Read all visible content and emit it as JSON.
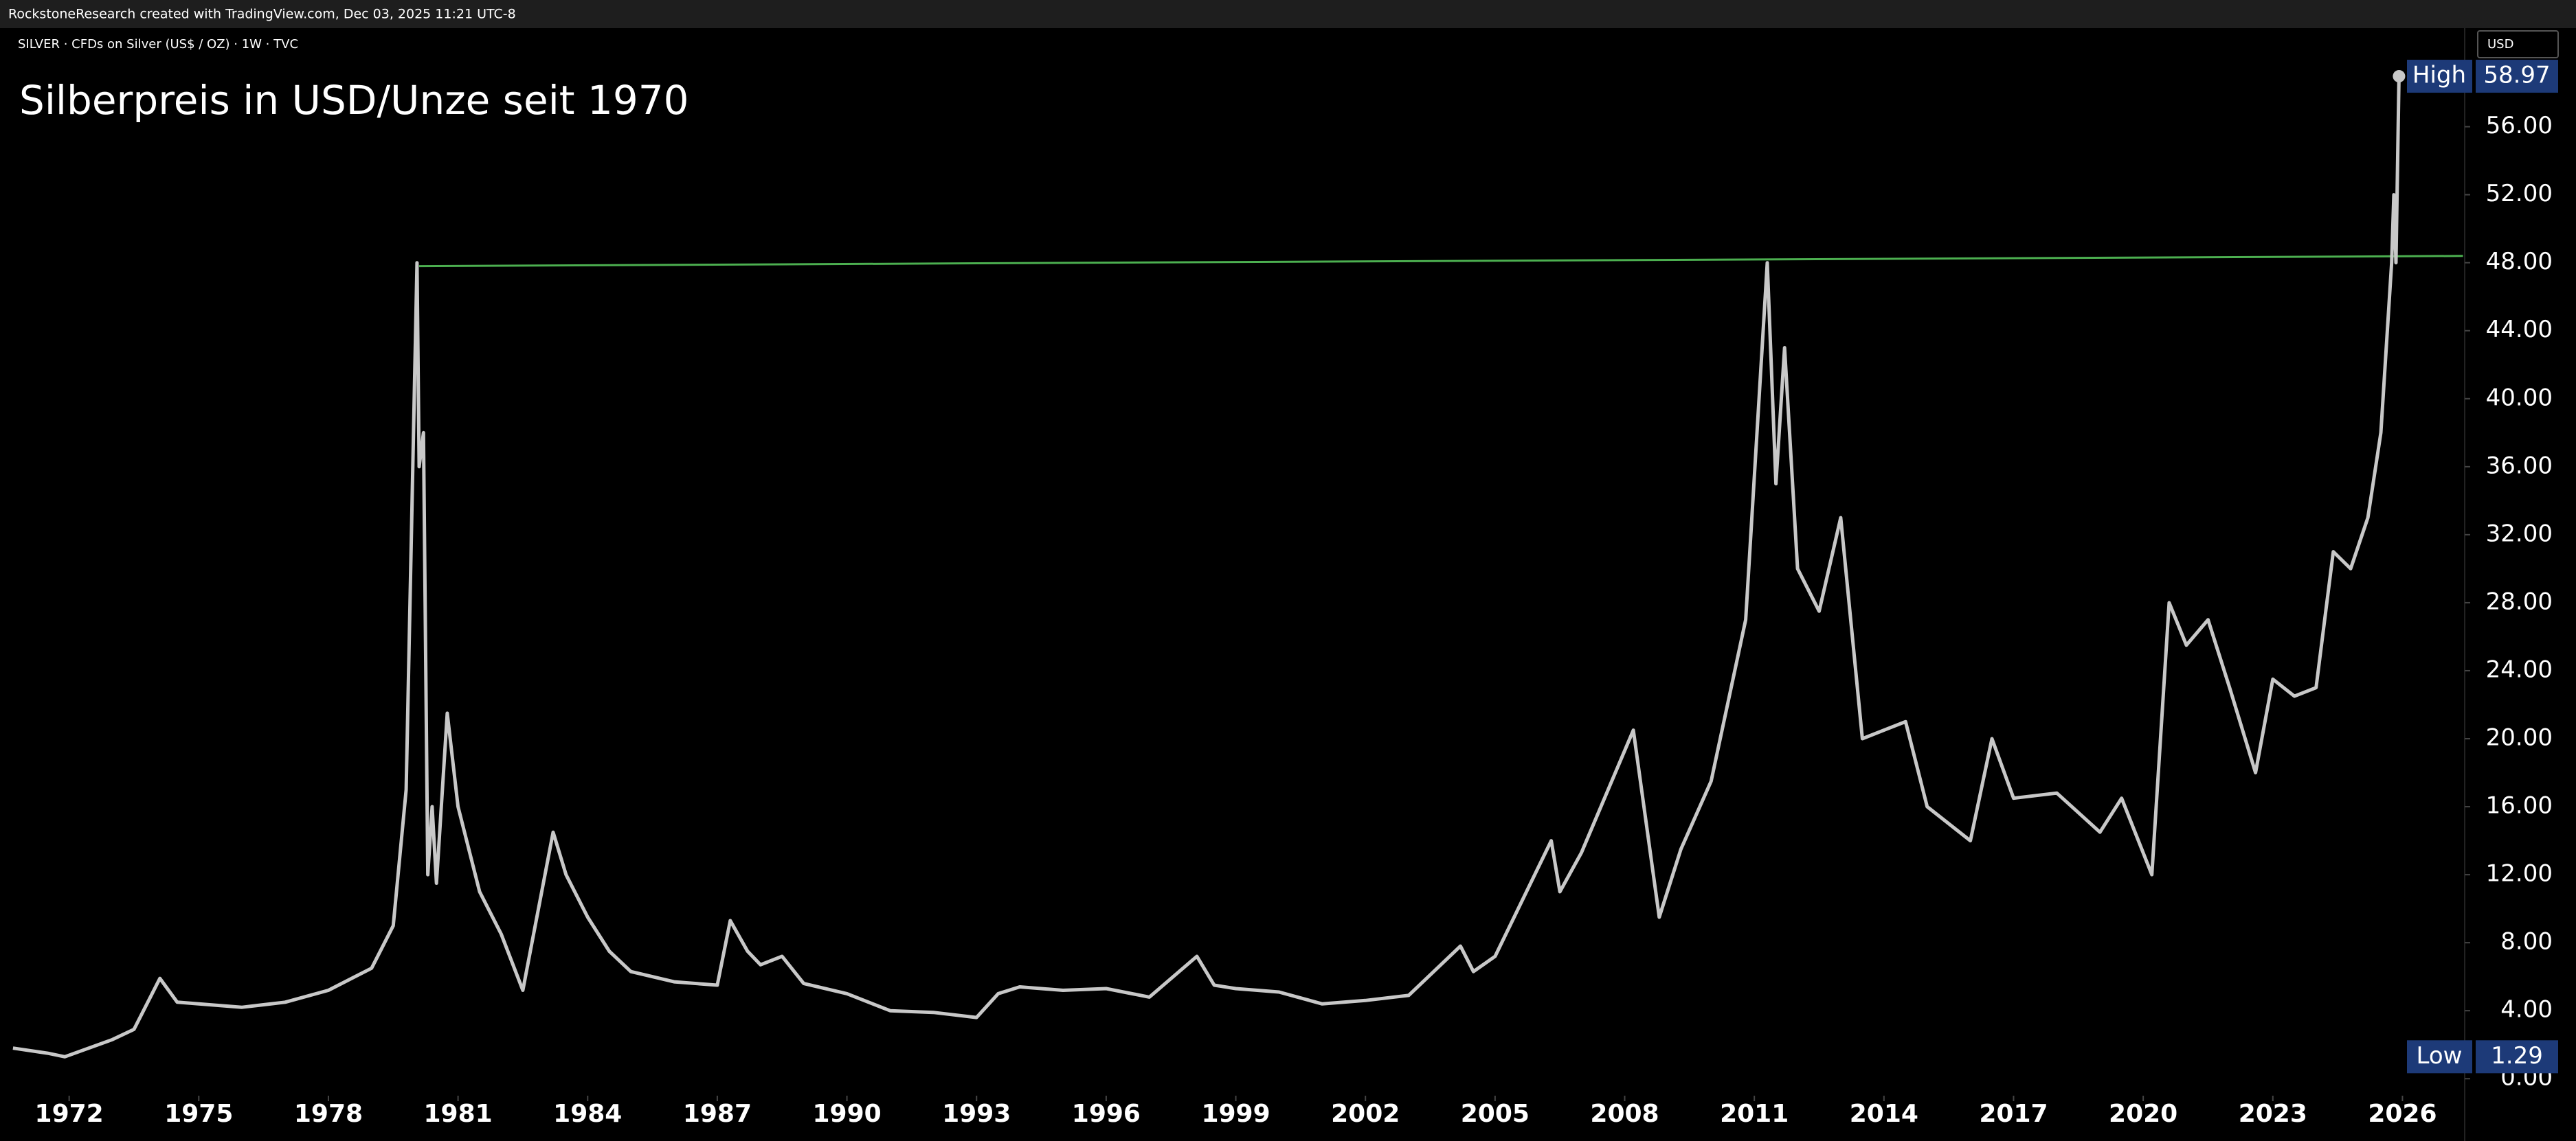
{
  "chart_data": {
    "type": "line",
    "credit": "RockstoneResearch created with TradingView.com, Dec 03, 2025 11:21 UTC-8",
    "subtitle": "SILVER · CFDs on Silver (US$ / OZ) · 1W · TVC",
    "title": "Silberpreis in USD/Unze seit 1970",
    "currency": "USD",
    "color": "#c8c8c8",
    "grid": false,
    "x": [
      1970.7,
      1971.5,
      1971.9,
      1973,
      1973.5,
      1974.1,
      1974.5,
      1975,
      1976,
      1977,
      1978,
      1979,
      1979.5,
      1979.8,
      1980.05,
      1980.1,
      1980.2,
      1980.3,
      1980.4,
      1980.5,
      1980.75,
      1981,
      1981.5,
      1982,
      1982.5,
      1983.2,
      1983.5,
      1984,
      1984.5,
      1985,
      1986,
      1987,
      1987.3,
      1987.7,
      1988,
      1988.5,
      1989,
      1990,
      1991,
      1992,
      1993,
      1993.5,
      1994,
      1995,
      1996,
      1997,
      1998.1,
      1998.5,
      1999,
      2000,
      2001,
      2002,
      2003,
      2004.2,
      2004.5,
      2005,
      2006.3,
      2006.5,
      2007,
      2008.2,
      2008.8,
      2009.3,
      2010,
      2010.8,
      2011.3,
      2011.5,
      2011.7,
      2012,
      2012.5,
      2013,
      2013.5,
      2014,
      2014.5,
      2015,
      2016,
      2016.5,
      2017,
      2018,
      2019,
      2019.5,
      2020.2,
      2020.6,
      2021,
      2021.5,
      2022,
      2022.6,
      2023,
      2023.5,
      2024,
      2024.4,
      2024.8,
      2025.2,
      2025.5,
      2025.75,
      2025.8,
      2025.85,
      2025.92
    ],
    "values": [
      1.8,
      1.5,
      1.29,
      2.3,
      2.9,
      5.9,
      4.5,
      4.4,
      4.2,
      4.5,
      5.2,
      6.5,
      9,
      17,
      48,
      36,
      38,
      12,
      16,
      11.5,
      21.5,
      16,
      11,
      8.5,
      5.2,
      14.5,
      12,
      9.5,
      7.5,
      6.3,
      5.7,
      5.5,
      9.3,
      7.5,
      6.7,
      7.2,
      5.6,
      5.0,
      4.0,
      3.9,
      3.6,
      5.0,
      5.4,
      5.2,
      5.3,
      4.8,
      7.2,
      5.5,
      5.3,
      5.1,
      4.4,
      4.6,
      4.9,
      7.8,
      6.3,
      7.2,
      14,
      11,
      13.3,
      20.5,
      9.5,
      13.5,
      17.5,
      27,
      48,
      35,
      43,
      30,
      27.5,
      33,
      20,
      20.5,
      21,
      16,
      14,
      20,
      16.5,
      16.8,
      14.5,
      16.5,
      12,
      28,
      25.5,
      27,
      23,
      18,
      23.5,
      22.5,
      23,
      31,
      30,
      33,
      38,
      48,
      52,
      48,
      58.97
    ],
    "trendline": {
      "x": [
        1980.1,
        2027.4
      ],
      "values": [
        47.8,
        48.4
      ],
      "color": "#4caf50"
    },
    "xlim": [
      1970.67,
      2027.44
    ],
    "xticks": [
      1972,
      1975,
      1978,
      1981,
      1984,
      1987,
      1990,
      1993,
      1996,
      1999,
      2002,
      2005,
      2008,
      2011,
      2014,
      2017,
      2020,
      2023,
      2026
    ],
    "ylim": [
      -1,
      62
    ],
    "yticks": [
      {
        "value": 0,
        "label": "0.00"
      },
      {
        "value": 4,
        "label": "4.00"
      },
      {
        "value": 8,
        "label": "8.00"
      },
      {
        "value": 12,
        "label": "12.00"
      },
      {
        "value": 16,
        "label": "16.00"
      },
      {
        "value": 20,
        "label": "20.00"
      },
      {
        "value": 24,
        "label": "24.00"
      },
      {
        "value": 28,
        "label": "28.00"
      },
      {
        "value": 32,
        "label": "32.00"
      },
      {
        "value": 36,
        "label": "36.00"
      },
      {
        "value": 40,
        "label": "40.00"
      },
      {
        "value": 44,
        "label": "44.00"
      },
      {
        "value": 48,
        "label": "48.00"
      },
      {
        "value": 52,
        "label": "52.00"
      },
      {
        "value": 56,
        "label": "56.00"
      }
    ],
    "high_label": "High",
    "high": 58.97,
    "low_label": "Low",
    "low": 1.29
  }
}
